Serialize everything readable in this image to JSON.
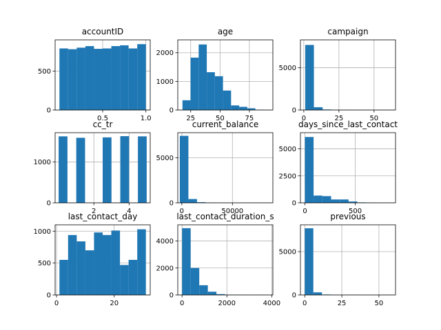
{
  "colors": {
    "bar": "#1f77b4",
    "grid": "#b0b0b0",
    "axis": "#000000",
    "background": "#ffffff"
  },
  "chart_data": [
    {
      "type": "bar",
      "title": "accountID",
      "grid": true,
      "xlim": [
        -0.05,
        1.05
      ],
      "ylim": [
        0,
        900
      ],
      "x_ticks": [
        0.5,
        1.0
      ],
      "x_tick_labels": [
        "0.5",
        "1.0"
      ],
      "y_ticks": [
        0,
        500
      ],
      "y_tick_labels": [
        "0",
        "500"
      ],
      "bin_edges": [
        0.0,
        0.1,
        0.2,
        0.3,
        0.4,
        0.5,
        0.6,
        0.7,
        0.8,
        0.9,
        1.0
      ],
      "values": [
        790,
        780,
        800,
        820,
        785,
        790,
        820,
        830,
        790,
        845
      ]
    },
    {
      "type": "bar",
      "title": "age",
      "grid": true,
      "xlim": [
        14,
        95
      ],
      "ylim": [
        0,
        2450
      ],
      "x_ticks": [
        25,
        50,
        75
      ],
      "x_tick_labels": [
        "25",
        "50",
        "75"
      ],
      "y_ticks": [
        0,
        1000,
        2000
      ],
      "y_tick_labels": [
        "0",
        "1000",
        "2000"
      ],
      "bin_edges": [
        18,
        24.9,
        31.8,
        38.7,
        45.6,
        52.5,
        59.4,
        66.3,
        73.2,
        80.1,
        87
      ],
      "values": [
        340,
        1830,
        2290,
        1320,
        1180,
        680,
        160,
        110,
        60,
        10
      ]
    },
    {
      "type": "bar",
      "title": "campaign",
      "grid": true,
      "xlim": [
        -2.4,
        65.3
      ],
      "ylim": [
        0,
        8300
      ],
      "x_ticks": [
        0,
        25,
        50
      ],
      "x_tick_labels": [
        "0",
        "25",
        "50"
      ],
      "y_ticks": [
        0,
        5000
      ],
      "y_tick_labels": [
        "0",
        "5000"
      ],
      "bin_edges": [
        1,
        7.2,
        13.4,
        19.6,
        25.8,
        32,
        38.2,
        44.4,
        50.6,
        56.8,
        63
      ],
      "values": [
        7700,
        330,
        60,
        20,
        10,
        5,
        0,
        0,
        0,
        5
      ]
    },
    {
      "type": "bar",
      "title": "cc_tr",
      "grid": true,
      "xlim": [
        -0.2,
        5.2
      ],
      "ylim": [
        0,
        1720
      ],
      "x_ticks": [
        2,
        4
      ],
      "x_tick_labels": [
        "2",
        "4"
      ],
      "y_ticks": [
        0,
        1000
      ],
      "y_tick_labels": [
        "0",
        "1000"
      ],
      "bin_edges": [
        0,
        0.5,
        1,
        1.5,
        2,
        2.5,
        3,
        3.5,
        4,
        4.5,
        5
      ],
      "values": [
        1630,
        0,
        1595,
        0,
        0,
        1605,
        0,
        1635,
        0,
        1630
      ]
    },
    {
      "type": "bar",
      "title": "current_balance",
      "grid": true,
      "xlim": [
        -4000,
        90000
      ],
      "ylim": [
        0,
        7800
      ],
      "x_ticks": [
        0,
        50000
      ],
      "x_tick_labels": [
        "0",
        "50000"
      ],
      "y_ticks": [
        0,
        5000
      ],
      "y_tick_labels": [
        "0",
        "5000"
      ],
      "bin_edges": [
        -2000,
        6500,
        15000,
        23500,
        32000,
        40500,
        49000,
        57500,
        66000,
        74500,
        83000
      ],
      "values": [
        7450,
        420,
        70,
        20,
        10,
        5,
        0,
        0,
        0,
        5
      ]
    },
    {
      "type": "bar",
      "title": "days_since_last_contact",
      "grid": true,
      "xlim": [
        -45,
        900
      ],
      "ylim": [
        0,
        6500
      ],
      "x_ticks": [
        0,
        500
      ],
      "x_tick_labels": [
        "0",
        "500"
      ],
      "y_ticks": [
        0,
        2500,
        5000
      ],
      "y_tick_labels": [
        "0",
        "2500",
        "5000"
      ],
      "bin_edges": [
        -1,
        85.9,
        172.8,
        259.7,
        346.6,
        433.5,
        520.4,
        607.3,
        694.2,
        781.1,
        868
      ],
      "values": [
        6100,
        670,
        620,
        310,
        310,
        120,
        40,
        20,
        10,
        5
      ]
    },
    {
      "type": "bar",
      "title": "last_contact_day",
      "grid": true,
      "xlim": [
        -0.5,
        32.5
      ],
      "ylim": [
        0,
        1100
      ],
      "x_ticks": [
        0,
        20
      ],
      "x_tick_labels": [
        "0",
        "20"
      ],
      "y_ticks": [
        0,
        500,
        1000
      ],
      "y_tick_labels": [
        "0",
        "500",
        "1000"
      ],
      "bin_edges": [
        1,
        4,
        7,
        10,
        13,
        16,
        19,
        22,
        25,
        28,
        31
      ],
      "values": [
        550,
        940,
        840,
        700,
        980,
        940,
        1010,
        470,
        550,
        1030
      ]
    },
    {
      "type": "bar",
      "title": "last_contact_duration_s",
      "grid": true,
      "xlim": [
        -190,
        4050
      ],
      "ylim": [
        0,
        5200
      ],
      "x_ticks": [
        0,
        2000,
        4000
      ],
      "x_tick_labels": [
        "0",
        "2000",
        "4000"
      ],
      "y_ticks": [
        0,
        2000,
        4000
      ],
      "y_tick_labels": [
        "0",
        "2000",
        "4000"
      ],
      "bin_edges": [
        2,
        385,
        768,
        1151,
        1534,
        1917,
        2300,
        2683,
        3066,
        3449,
        3832
      ],
      "values": [
        4950,
        2000,
        720,
        240,
        60,
        20,
        10,
        5,
        0,
        5
      ]
    },
    {
      "type": "bar",
      "title": "previous",
      "grid": true,
      "xlim": [
        -2.9,
        61.2
      ],
      "ylim": [
        0,
        8100
      ],
      "x_ticks": [
        0,
        25,
        50
      ],
      "x_tick_labels": [
        "0",
        "25",
        "50"
      ],
      "y_ticks": [
        0,
        5000
      ],
      "y_tick_labels": [
        "0",
        "5000"
      ],
      "bin_edges": [
        0,
        5.8,
        11.6,
        17.4,
        23.2,
        29,
        34.8,
        40.6,
        46.4,
        52.2,
        58
      ],
      "values": [
        7700,
        300,
        50,
        10,
        5,
        5,
        0,
        0,
        0,
        5
      ]
    }
  ]
}
